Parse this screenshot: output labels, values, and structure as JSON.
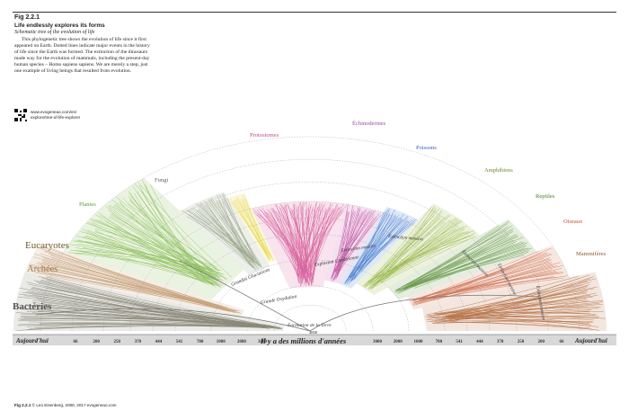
{
  "header": {
    "fig_number": "Fig 2.2.1",
    "title": "Life endlessly explores its forms",
    "subtitle": "Schematic tree of the evolution of life",
    "description": "This phylogenetic tree shows the evolution of life since it first appeared on Earth. Dotted lines indicate major events in the history of life since the Earth was formed. The extinction of the dinosaurs made way for the evolution of mammals, including the present-day human species – Homo sapiens sapiens. We are merely a step, just one example of living beings that resulted from evolution."
  },
  "qr": {
    "url_line1": "www.evogeneao.com/en/",
    "url_line2": "explore/tree-of-life-explorer"
  },
  "groups": {
    "eucaryotes": "Eucaryotes",
    "archees": "Archées",
    "bacteries": "Bactéries",
    "plantes": "Plantes",
    "fungi": "Fungi",
    "protostomes": "Protostomes",
    "echinodermes": "Échinodermes",
    "poissons": "Poissons",
    "amphibiens": "Amphibiens",
    "reptiles": "Reptiles",
    "oiseaux": "Oiseaux",
    "mammiferes": "Mammifères"
  },
  "events": {
    "formation": "Formation de la Terre",
    "oxydation": "Grande Oxydation",
    "glaciations": "Grandes Glaciations",
    "cambrienne": "Explosion Cambrienne",
    "extinction1": "Extinction massive",
    "extinction2": "Extinction massive",
    "extinction3": "Extinction massive",
    "extinction4": "Extinction massive",
    "extinction5": "Extinction massive"
  },
  "axis": {
    "left_label": "Aujourd'hui",
    "right_label": "Aujourd'hui",
    "center_value": "4000",
    "center_label": "Il y a des millions d'années",
    "ticks_left": [
      "66",
      "200",
      "250",
      "370",
      "444",
      "541",
      "700",
      "1000",
      "2000",
      "3000"
    ],
    "ticks_right": [
      "3000",
      "2000",
      "1000",
      "700",
      "541",
      "444",
      "370",
      "250",
      "200",
      "66"
    ]
  },
  "footer": {
    "fig": "Fig 2.2.1",
    "credit": "© Leo Eisenberg, 2008, 2017 evogeneao.com"
  },
  "colors": {
    "bacteria": "#8c8a7a",
    "archaea": "#c7a27a",
    "plants": "#8dbf5a",
    "fungi": "#9aa58a",
    "yellow": "#e6d84a",
    "protostomes": "#d8649e",
    "echinoderms": "#c45aa8",
    "fish": "#4a7fd0",
    "amphibians": "#9ab84a",
    "reptiles": "#6a9a4a",
    "birds": "#d07a5a",
    "mammals": "#b8744a"
  }
}
